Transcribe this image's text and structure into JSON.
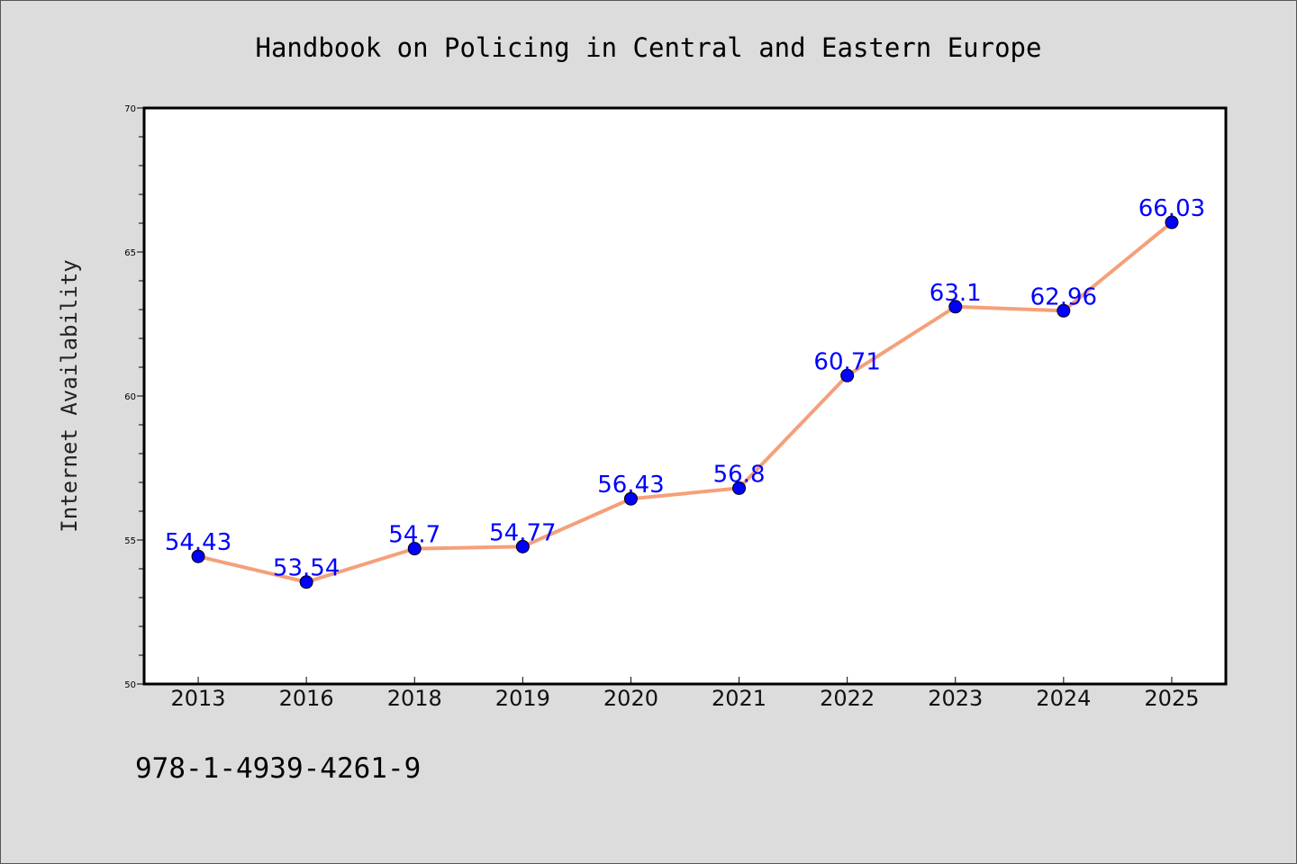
{
  "chart_data": {
    "type": "line",
    "title": "Handbook on Policing in Central and Eastern Europe",
    "xlabel": "",
    "ylabel": "Internet Availability",
    "categories": [
      "2013",
      "2016",
      "2018",
      "2019",
      "2020",
      "2021",
      "2022",
      "2023",
      "2024",
      "2025"
    ],
    "values": [
      54.43,
      53.54,
      54.7,
      54.77,
      56.43,
      56.8,
      60.71,
      63.1,
      62.96,
      66.03
    ],
    "data_labels": [
      "54.43",
      "53.54",
      "54.7",
      "54.77",
      "56.43",
      "56.8",
      "60.71",
      "63.1",
      "62.96",
      "66.03"
    ],
    "ylim": [
      50,
      70
    ],
    "yticks": [
      "50",
      "55",
      "60",
      "65",
      "70"
    ],
    "grid": false,
    "line_color": "#f4a07a",
    "marker_color": "#0000ff",
    "label_color": "#0000ff",
    "background_color": "#dcdcdc",
    "plot_background": "#ffffff"
  },
  "footer": {
    "isbn": "978-1-4939-4261-9"
  }
}
